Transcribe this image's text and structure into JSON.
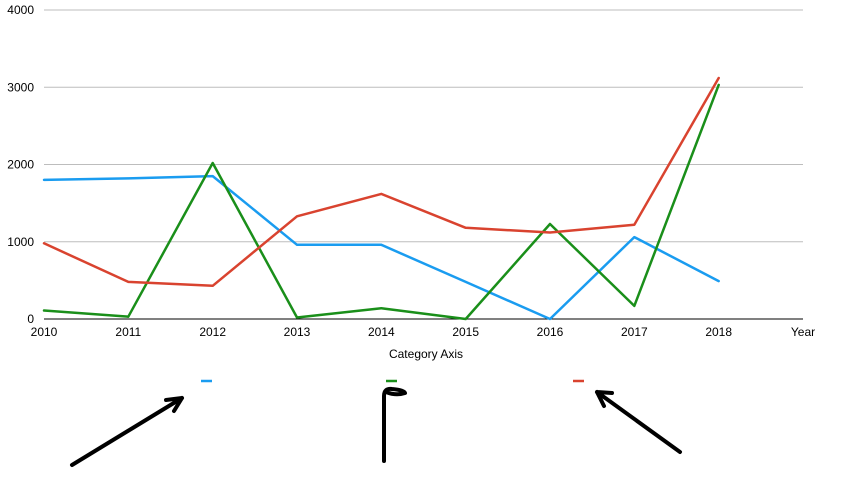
{
  "chart_data": {
    "type": "line",
    "title": "",
    "xlabel": "Category Axis",
    "x_axis_extra_label": "Year",
    "ylabel": "",
    "categories": [
      "2010",
      "2011",
      "2012",
      "2013",
      "2014",
      "2015",
      "2016",
      "2017",
      "2018"
    ],
    "y_ticks": [
      "0",
      "1000",
      "2000",
      "3000",
      "4000"
    ],
    "ylim": [
      0,
      4000
    ],
    "grid": true,
    "legend": "bottom",
    "series": [
      {
        "color": "#1a9cf0",
        "values": [
          1800,
          1820,
          1850,
          960,
          960,
          480,
          0,
          1060,
          490
        ]
      },
      {
        "color": "#1a8f1a",
        "values": [
          110,
          30,
          2020,
          20,
          140,
          0,
          1230,
          170,
          3030
        ]
      },
      {
        "color": "#d9432f",
        "values": [
          980,
          480,
          430,
          1330,
          1620,
          1180,
          1120,
          1220,
          3120
        ]
      }
    ]
  }
}
